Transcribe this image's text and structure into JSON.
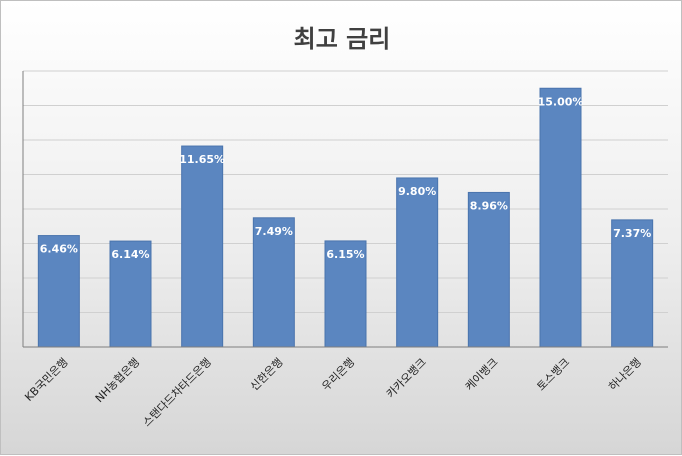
{
  "chart_data": {
    "type": "bar",
    "title": "최고 금리",
    "categories": [
      "KB국민은행",
      "NH농협은행",
      "스탠다드차타드은행",
      "신한은행",
      "우리은행",
      "카카오뱅크",
      "케이뱅크",
      "토스뱅크",
      "하나은행"
    ],
    "values": [
      6.46,
      6.14,
      11.65,
      7.49,
      6.15,
      9.8,
      8.96,
      15.0,
      7.37
    ],
    "data_labels": [
      "6.46%",
      "6.14%",
      "11.65%",
      "7.49%",
      "6.15%",
      "9.80%",
      "8.96%",
      "15.00%",
      "7.37%"
    ],
    "ylim": [
      0,
      16
    ],
    "y_tick_step": 2,
    "y_tick_labels_visible": false,
    "grid": true,
    "legend": "none",
    "xlabel": "",
    "ylabel": "",
    "colors": {
      "bar": "#5b86c0",
      "bar_edge": "#4a74ad",
      "grid": "#d0d0d0",
      "axis": "#7f7f7f",
      "data_label": "#ffffff",
      "tick_label": "#222222"
    }
  }
}
